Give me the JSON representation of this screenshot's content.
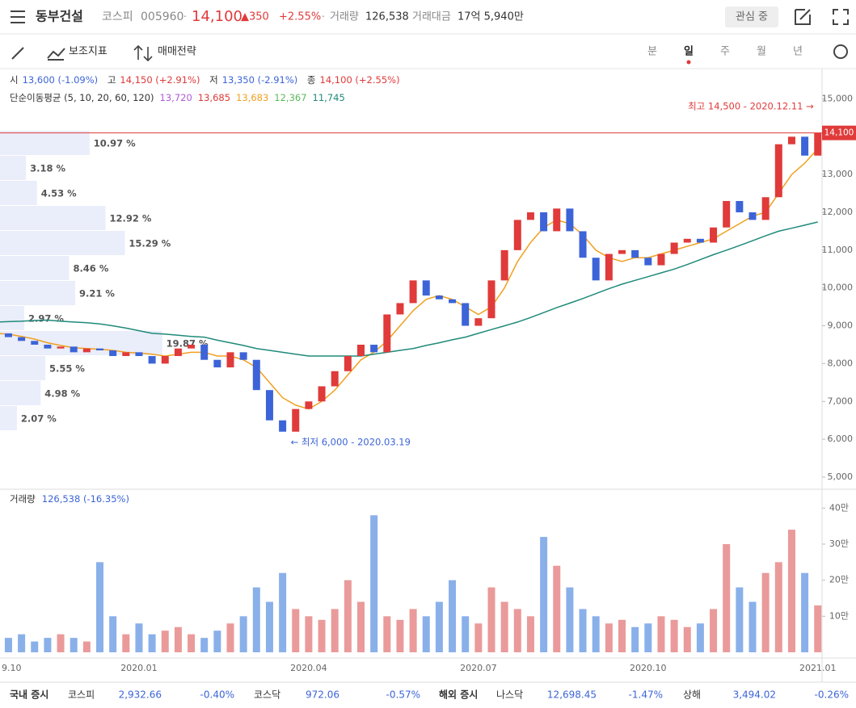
{
  "header": {
    "name": "동부건설",
    "market": "코스피",
    "code": "005960",
    "dot": "·",
    "price": "14,100",
    "change": "▲350",
    "change_pct": "+2.55%",
    "volume_label": "거래량",
    "volume": "126,538",
    "amount_label": "거래대금",
    "amount": "17억 5,940만",
    "watch": "관심 중"
  },
  "toolbar": {
    "indicators": "보조지표",
    "strategy": "매매전략",
    "periods": [
      "분",
      "일",
      "주",
      "월",
      "년"
    ]
  },
  "ohlc": [
    {
      "label": "시",
      "value": "13,600 (-1.09%)"
    },
    {
      "label": "고",
      "value": "14,150 (+2.91%)"
    },
    {
      "label": "저",
      "value": "13,350 (-2.91%)"
    },
    {
      "label": "종",
      "value": "14,100 (+2.55%)"
    }
  ],
  "ma_legend": {
    "label": "단순이동평균 (5, 10, 20, 60, 120)",
    "value_labels": [
      "13,720",
      "13,685",
      "13,683",
      "12,367",
      "11,745"
    ],
    "values": [
      13720,
      13685,
      13683,
      12367,
      11745
    ],
    "colors": [
      "#b05ad8",
      "#e03a3a",
      "#f0a020",
      "#5cb85c",
      "#1f8a7a"
    ]
  },
  "volume_profile": {
    "values": [
      10.97,
      3.18,
      4.53,
      12.92,
      15.29,
      8.46,
      9.21,
      2.97,
      19.87,
      5.55,
      4.98,
      2.07
    ],
    "value_labels": [
      "10.97 %",
      "3.18 %",
      "4.53 %",
      "12.92 %",
      "15.29 %",
      "8.46 %",
      "9.21 %",
      "2.97 %",
      "19.87 %",
      "5.55 %",
      "4.98 %",
      "2.07 %"
    ],
    "color": "#e8ebfa"
  },
  "chart_data": {
    "type": "candlestick",
    "categories": [
      "9.10",
      null,
      null,
      null,
      null,
      null,
      null,
      null,
      null,
      null,
      null,
      "2020.01",
      null,
      null,
      null,
      null,
      null,
      null,
      null,
      null,
      null,
      null,
      null,
      null,
      "2020.04",
      null,
      null,
      null,
      null,
      null,
      null,
      null,
      null,
      null,
      null,
      null,
      null,
      "2020.07",
      null,
      null,
      null,
      null,
      null,
      null,
      null,
      null,
      null,
      null,
      null,
      null,
      "2020.10",
      null,
      null,
      null,
      null,
      null,
      null,
      null,
      null,
      null,
      null,
      null,
      null,
      "2021.01"
    ],
    "values": [
      8800,
      8700,
      8600,
      8500,
      8400,
      8450,
      8300,
      8400,
      8350,
      8200,
      8300,
      8200,
      8000,
      8200,
      8400,
      8500,
      8100,
      7900,
      8300,
      8100,
      7300,
      6500,
      6200,
      6800,
      7000,
      7400,
      7800,
      8200,
      8500,
      8300,
      9300,
      9600,
      10200,
      9800,
      9700,
      9600,
      9000,
      9200,
      10200,
      11000,
      11800,
      12000,
      11500,
      12100,
      11500,
      10800,
      10200,
      10900,
      11000,
      10800,
      10600,
      10900,
      11200,
      11300,
      11200,
      11600,
      12300,
      12000,
      11800,
      12400,
      13800,
      14000,
      13500,
      14100
    ],
    "up_color": "#e03a3a",
    "down_color": "#3c64d8",
    "series": [
      {
        "color": "#f0a020",
        "values": [
          8800,
          8780,
          8720,
          8650,
          8550,
          8480,
          8420,
          8400,
          8380,
          8350,
          8300,
          8280,
          8250,
          8200,
          8250,
          8300,
          8300,
          8200,
          8200,
          8100,
          7900,
          7500,
          7100,
          6900,
          6800,
          7000,
          7300,
          7700,
          8100,
          8300,
          8600,
          9000,
          9400,
          9700,
          9800,
          9700,
          9500,
          9300,
          9500,
          10000,
          10700,
          11200,
          11600,
          11800,
          11700,
          11400,
          11000,
          10800,
          10700,
          10800,
          10800,
          10900,
          11000,
          11100,
          11200,
          11300,
          11500,
          11700,
          11900,
          12000,
          12500,
          13000,
          13300,
          13683
        ]
      },
      {
        "color": "#1f8a7a",
        "values": [
          9100,
          9110,
          9120,
          9140,
          9150,
          9120,
          9100,
          9080,
          9050,
          9000,
          8940,
          8870,
          8800,
          8780,
          8750,
          8720,
          8700,
          8620,
          8550,
          8480,
          8400,
          8350,
          8300,
          8250,
          8200,
          8200,
          8200,
          8200,
          8200,
          8250,
          8300,
          8350,
          8400,
          8480,
          8550,
          8630,
          8700,
          8800,
          8900,
          9000,
          9100,
          9220,
          9350,
          9480,
          9600,
          9720,
          9850,
          9980,
          10100,
          10200,
          10300,
          10400,
          10500,
          10620,
          10750,
          10880,
          11000,
          11120,
          11250,
          11380,
          11500,
          11580,
          11660,
          11745
        ]
      }
    ],
    "ylim": [
      4700,
      15800
    ],
    "yticks": [
      {
        "value": 5000,
        "label": "5,000"
      },
      {
        "value": 6000,
        "label": "6,000"
      },
      {
        "value": 7000,
        "label": "7,000"
      },
      {
        "value": 8000,
        "label": "8,000"
      },
      {
        "value": 9000,
        "label": "9,000"
      },
      {
        "value": 10000,
        "label": "10,000"
      },
      {
        "value": 11000,
        "label": "11,000"
      },
      {
        "value": 12000,
        "label": "12,000"
      },
      {
        "value": 13000,
        "label": "13,000"
      },
      {
        "value": 14000,
        "label": "14,000"
      },
      {
        "value": 15000,
        "label": "15,000"
      }
    ],
    "last": {
      "value": 14100,
      "label": "14,100"
    },
    "high": {
      "value": 14500,
      "label": "최고 14,500 - 2020.12.11 →"
    },
    "low": {
      "value": 6000,
      "label": "← 최저 6,000 - 2020.03.19"
    }
  },
  "volume_chart": {
    "title": "거래량",
    "summary": "126,538 (-16.35%)",
    "ylim": [
      0,
      45
    ],
    "yticks": [
      {
        "value": 10,
        "label": "10만"
      },
      {
        "value": 20,
        "label": "20만"
      },
      {
        "value": 30,
        "label": "30만"
      },
      {
        "value": 40,
        "label": "40만"
      }
    ],
    "values": [
      3,
      4,
      5,
      3,
      4,
      5,
      4,
      3,
      25,
      10,
      5,
      8,
      5,
      6,
      7,
      5,
      4,
      6,
      8,
      10,
      18,
      14,
      22,
      12,
      10,
      9,
      12,
      20,
      14,
      38,
      10,
      9,
      12,
      10,
      14,
      20,
      10,
      8,
      18,
      14,
      12,
      10,
      32,
      24,
      18,
      12,
      10,
      8,
      9,
      7,
      8,
      10,
      9,
      7,
      8,
      12,
      30,
      18,
      14,
      22,
      25,
      34,
      22,
      13
    ],
    "up_color": "#ea9a9a",
    "down_color": "#8ab0ea"
  },
  "footer": {
    "domestic": "국내 증시",
    "kospi": "코스피",
    "kospi_value": "2,932.66",
    "kospi_pct": "-0.40%",
    "kosdaq": "코스닥",
    "kosdaq_value": "972.06",
    "kosdaq_pct": "-0.57%",
    "foreign": "해외 증시",
    "nasdaq": "나스닥",
    "nasdaq_value": "12,698.45",
    "nasdaq_pct": "-1.47%",
    "shanghai": "상해",
    "shanghai_value": "3,494.02",
    "shanghai_pct": "-0.26%"
  }
}
